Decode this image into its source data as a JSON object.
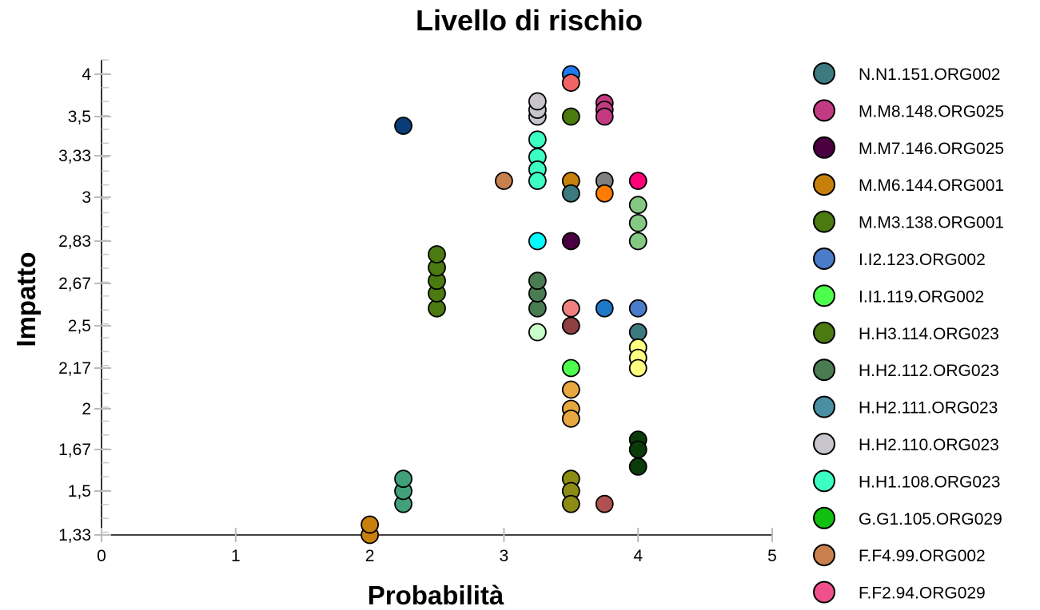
{
  "chart_data": {
    "type": "scatter",
    "title": "Livello di rischio",
    "xlabel": "Probabilità",
    "ylabel": "Impatto",
    "xlim": [
      0,
      5
    ],
    "ylim": [
      1.33,
      4
    ],
    "x_ticks": [
      {
        "value": 0,
        "label": "0"
      },
      {
        "value": 1,
        "label": "1"
      },
      {
        "value": 2,
        "label": "2"
      },
      {
        "value": 3,
        "label": "3"
      },
      {
        "value": 4,
        "label": "4"
      },
      {
        "value": 5,
        "label": "5"
      }
    ],
    "y_ticks": [
      {
        "value": 1.33,
        "label": "1,33"
      },
      {
        "value": 1.5,
        "label": "1,5"
      },
      {
        "value": 1.67,
        "label": "1,67"
      },
      {
        "value": 2,
        "label": "2"
      },
      {
        "value": 2.17,
        "label": "2,17"
      },
      {
        "value": 2.5,
        "label": "2,5"
      },
      {
        "value": 2.67,
        "label": "2,67"
      },
      {
        "value": 2.83,
        "label": "2,83"
      },
      {
        "value": 3,
        "label": "3"
      },
      {
        "value": 3.33,
        "label": "3,33"
      },
      {
        "value": 3.5,
        "label": "3,5"
      },
      {
        "value": 4,
        "label": "4"
      }
    ],
    "legend_position": "right",
    "grid": false,
    "series": [
      {
        "name": "N.N1.151.ORG002",
        "color": "#3d7a80",
        "points": []
      },
      {
        "name": "M.M8.148.ORG025",
        "color": "#c23b82",
        "points": []
      },
      {
        "name": "M.M7.146.ORG025",
        "color": "#4a0040",
        "points": []
      },
      {
        "name": "M.M6.144.ORG001",
        "color": "#c8800c",
        "points": []
      },
      {
        "name": "M.M3.138.ORG001",
        "color": "#4b7a0e",
        "points": []
      },
      {
        "name": "I.I2.123.ORG002",
        "color": "#4a7cc9",
        "points": []
      },
      {
        "name": "I.I1.119.ORG002",
        "color": "#4cff4c",
        "points": []
      },
      {
        "name": "H.H3.114.ORG023",
        "color": "#4a7a10",
        "points": []
      },
      {
        "name": "H.H2.112.ORG023",
        "color": "#4a7c52",
        "points": []
      },
      {
        "name": "H.H2.111.ORG023",
        "color": "#4a90a4",
        "points": []
      },
      {
        "name": "H.H2.110.ORG023",
        "color": "#c8c4cc",
        "points": []
      },
      {
        "name": "H.H1.108.ORG023",
        "color": "#3cffc4",
        "points": []
      },
      {
        "name": "G.G1.105.ORG029",
        "color": "#10c010",
        "points": []
      },
      {
        "name": "F.F4.99.ORG002",
        "color": "#c8804c",
        "points": []
      },
      {
        "name": "F.F2.94.ORG029",
        "color": "#f0508c",
        "points": []
      }
    ],
    "points": [
      {
        "x": 2,
        "y": 1.33,
        "color": "#c8800c"
      },
      {
        "x": 2,
        "y": 1.37,
        "color": "#c8800c"
      },
      {
        "x": 2.25,
        "y": 1.45,
        "color": "#3fa07a"
      },
      {
        "x": 2.25,
        "y": 1.5,
        "color": "#3fa07a"
      },
      {
        "x": 2.25,
        "y": 1.55,
        "color": "#3fa07a"
      },
      {
        "x": 2.25,
        "y": 3.46,
        "color": "#0a3c78"
      },
      {
        "x": 2.5,
        "y": 2.57,
        "color": "#4a7a10"
      },
      {
        "x": 2.5,
        "y": 2.63,
        "color": "#4a7a10"
      },
      {
        "x": 2.5,
        "y": 2.68,
        "color": "#4a7a10"
      },
      {
        "x": 2.5,
        "y": 2.73,
        "color": "#4a7a10"
      },
      {
        "x": 2.5,
        "y": 2.78,
        "color": "#4a7a10"
      },
      {
        "x": 3,
        "y": 3.13,
        "color": "#c8804c"
      },
      {
        "x": 3.25,
        "y": 3.5,
        "color": "#c8c4cc"
      },
      {
        "x": 3.25,
        "y": 3.58,
        "color": "#c8c4cc"
      },
      {
        "x": 3.25,
        "y": 3.68,
        "color": "#c8c4cc"
      },
      {
        "x": 3.25,
        "y": 3.4,
        "color": "#3cffc4"
      },
      {
        "x": 3.25,
        "y": 3.32,
        "color": "#3cffc4"
      },
      {
        "x": 3.25,
        "y": 3.22,
        "color": "#3cffc4"
      },
      {
        "x": 3.25,
        "y": 3.13,
        "color": "#3cffc4"
      },
      {
        "x": 3.25,
        "y": 2.83,
        "color": "#00ffff"
      },
      {
        "x": 3.25,
        "y": 2.57,
        "color": "#4a7c52"
      },
      {
        "x": 3.25,
        "y": 2.63,
        "color": "#4a7c52"
      },
      {
        "x": 3.25,
        "y": 2.68,
        "color": "#4a7c52"
      },
      {
        "x": 3.25,
        "y": 2.45,
        "color": "#c8ffc8"
      },
      {
        "x": 3.5,
        "y": 4,
        "color": "#1e7cf0"
      },
      {
        "x": 3.5,
        "y": 3.9,
        "color": "#f06464"
      },
      {
        "x": 3.5,
        "y": 3.5,
        "color": "#4b7a0e"
      },
      {
        "x": 3.5,
        "y": 3.13,
        "color": "#c8800c"
      },
      {
        "x": 3.5,
        "y": 3.03,
        "color": "#3d7a80"
      },
      {
        "x": 3.5,
        "y": 2.83,
        "color": "#4a0040"
      },
      {
        "x": 3.5,
        "y": 2.57,
        "color": "#f08080"
      },
      {
        "x": 3.5,
        "y": 2.5,
        "color": "#8c4040"
      },
      {
        "x": 3.5,
        "y": 2.17,
        "color": "#4cff4c"
      },
      {
        "x": 3.5,
        "y": 2.08,
        "color": "#e8a840"
      },
      {
        "x": 3.5,
        "y": 2,
        "color": "#e8a840"
      },
      {
        "x": 3.5,
        "y": 1.92,
        "color": "#e8a840"
      },
      {
        "x": 3.5,
        "y": 1.55,
        "color": "#8c8c14"
      },
      {
        "x": 3.5,
        "y": 1.5,
        "color": "#8c8c14"
      },
      {
        "x": 3.5,
        "y": 1.45,
        "color": "#8c8c14"
      },
      {
        "x": 3.75,
        "y": 3.66,
        "color": "#c23b82"
      },
      {
        "x": 3.75,
        "y": 3.58,
        "color": "#c23b82"
      },
      {
        "x": 3.75,
        "y": 3.5,
        "color": "#c23b82"
      },
      {
        "x": 3.75,
        "y": 3.13,
        "color": "#808080"
      },
      {
        "x": 3.75,
        "y": 3.03,
        "color": "#ff7c00"
      },
      {
        "x": 3.75,
        "y": 2.57,
        "color": "#1e78c8"
      },
      {
        "x": 3.75,
        "y": 1.45,
        "color": "#b05050"
      },
      {
        "x": 4,
        "y": 3.13,
        "color": "#ff0078"
      },
      {
        "x": 4,
        "y": 2.97,
        "color": "#84c884"
      },
      {
        "x": 4,
        "y": 2.9,
        "color": "#84c884"
      },
      {
        "x": 4,
        "y": 2.83,
        "color": "#84c884"
      },
      {
        "x": 4,
        "y": 2.57,
        "color": "#4a7cc9"
      },
      {
        "x": 4,
        "y": 2.45,
        "color": "#3d7a80"
      },
      {
        "x": 4,
        "y": 2.33,
        "color": "#ffff80"
      },
      {
        "x": 4,
        "y": 2.25,
        "color": "#ffff80"
      },
      {
        "x": 4,
        "y": 2.17,
        "color": "#ffff80"
      },
      {
        "x": 4,
        "y": 1.75,
        "color": "#0a3c0a"
      },
      {
        "x": 4,
        "y": 1.67,
        "color": "#0a3c0a"
      },
      {
        "x": 4,
        "y": 1.6,
        "color": "#0a3c0a"
      }
    ]
  }
}
